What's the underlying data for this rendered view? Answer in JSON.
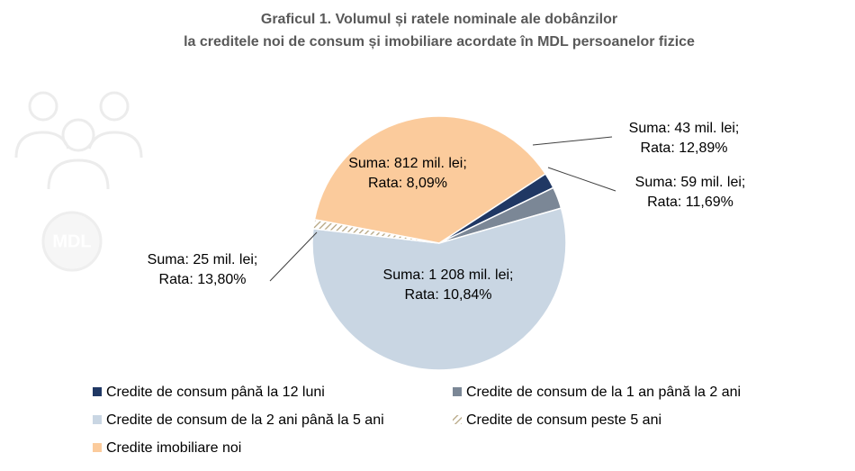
{
  "chart_data": {
    "type": "pie",
    "title": [
      "Graficul 1. Volumul și ratele nominale ale dobânzilor",
      "la creditele noi de consum și imobiliare acordate în  MDL persoanelor fizice"
    ],
    "icon_text": "MDL",
    "categories": [
      "Credite de consum până la 12 luni",
      "Credite de consum de la 1 an până la 2 ani",
      "Credite de consum de la 2 ani până la 5 ani",
      "Credite de consum peste 5 ani",
      "Credite imobiliare noi"
    ],
    "values": [
      43,
      59,
      1208,
      25,
      812
    ],
    "value_labels": [
      "Suma:  43 mil. lei;",
      "Suma:  59 mil. lei;",
      "Suma:  1 208 mil. lei;",
      "Suma:  25 mil. lei;",
      "Suma:  812 mil. lei;"
    ],
    "rates": [
      12.89,
      11.69,
      10.84,
      13.8,
      8.09
    ],
    "rate_labels": [
      "Rata: 12,89%",
      "Rata: 11,69%",
      "Rata: 10,84%",
      "Rata: 13,80%",
      "Rata: 8,09%"
    ],
    "colors": [
      "#203864",
      "#7b8796",
      "#c9d6e3",
      "#b3a27c",
      "#fbcb9c"
    ],
    "hatched": [
      false,
      false,
      false,
      true,
      false
    ],
    "legend": "bottom"
  }
}
